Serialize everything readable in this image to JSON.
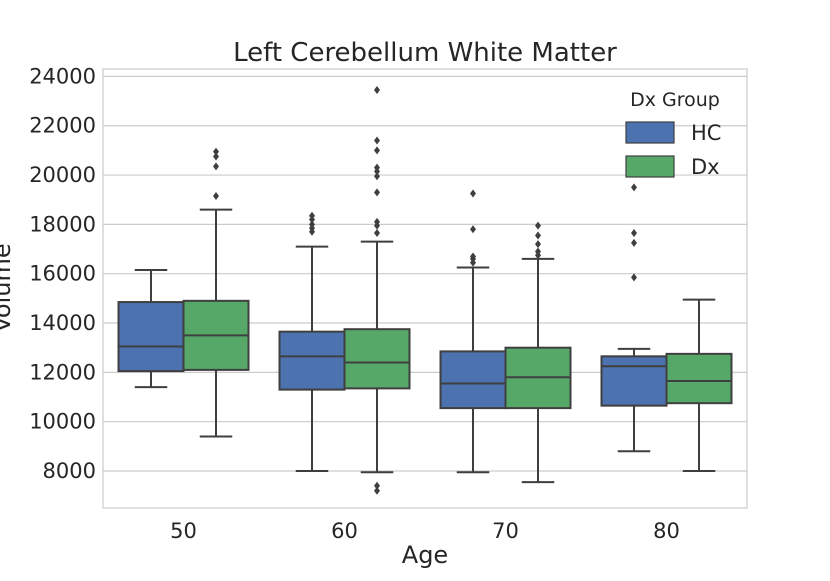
{
  "chart_data": {
    "type": "boxplot",
    "title": "Left Cerebellum White Matter",
    "xlabel": "Age",
    "ylabel": "Volume",
    "categories": [
      "50",
      "60",
      "70",
      "80"
    ],
    "ylim": [
      6500,
      24300
    ],
    "yticks": [
      8000,
      10000,
      12000,
      14000,
      16000,
      18000,
      20000,
      22000,
      24000
    ],
    "ytick_labels": [
      "8000",
      "10000",
      "12000",
      "14000",
      "16000",
      "18000",
      "20000",
      "22000",
      "24000"
    ],
    "grid": true,
    "legend": {
      "title": "Dx Group",
      "position": "top-right"
    },
    "series": [
      {
        "name": "HC",
        "color": "#4c72b0",
        "boxes": [
          {
            "whislo": 11400,
            "q1": 12050,
            "med": 13050,
            "q3": 14850,
            "whishi": 16150,
            "fliers": []
          },
          {
            "whislo": 8000,
            "q1": 11300,
            "med": 12650,
            "q3": 13650,
            "whishi": 17100,
            "fliers": [
              17700,
              17850,
              18000,
              18200,
              18350
            ]
          },
          {
            "whislo": 7950,
            "q1": 10550,
            "med": 11550,
            "q3": 12850,
            "whishi": 16250,
            "fliers": [
              16450,
              16600,
              16700,
              17800,
              19250
            ]
          },
          {
            "whislo": 8800,
            "q1": 10650,
            "med": 12250,
            "q3": 12650,
            "whishi": 12950,
            "fliers": [
              15850,
              17250,
              17650,
              19500
            ]
          }
        ]
      },
      {
        "name": "Dx",
        "color": "#55a868",
        "boxes": [
          {
            "whislo": 9400,
            "q1": 12100,
            "med": 13500,
            "q3": 14900,
            "whishi": 18600,
            "fliers": [
              19150,
              20350,
              20750,
              20950
            ]
          },
          {
            "whislo": 7950,
            "q1": 11350,
            "med": 12400,
            "q3": 13750,
            "whishi": 17300,
            "fliers": [
              7200,
              7400,
              17650,
              17950,
              18100,
              19300,
              19950,
              20150,
              20300,
              21000,
              21400,
              23450
            ]
          },
          {
            "whislo": 7550,
            "q1": 10550,
            "med": 11800,
            "q3": 13000,
            "whishi": 16600,
            "fliers": [
              16750,
              16900,
              17200,
              17550,
              17950
            ]
          },
          {
            "whislo": 8000,
            "q1": 10750,
            "med": 11650,
            "q3": 12750,
            "whishi": 14950,
            "fliers": []
          }
        ]
      }
    ]
  }
}
